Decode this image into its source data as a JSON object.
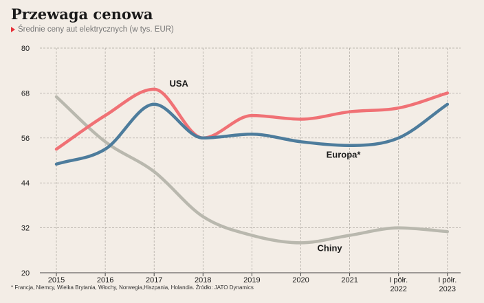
{
  "header": {
    "title": "Przewaga cenowa",
    "subtitle": "Średnie ceny aut elektrycznych (w tys. EUR)"
  },
  "footnote": "* Francja, Niemcy, Wielka Brytania, Włochy, Norwegia,Hiszpania, Holandia. Źródło: JATO Dynamics",
  "chart_data": {
    "type": "line",
    "title": "Przewaga cenowa",
    "subtitle": "Średnie ceny aut elektrycznych (w tys. EUR)",
    "xlabel": "",
    "ylabel": "",
    "categories": [
      [
        "2015"
      ],
      [
        "2016"
      ],
      [
        "2017"
      ],
      [
        "2018"
      ],
      [
        "2019"
      ],
      [
        "2020"
      ],
      [
        "2021"
      ],
      [
        "I półr.",
        "2022"
      ],
      [
        "I półr.",
        "2023"
      ]
    ],
    "yticks": [
      20,
      32,
      44,
      56,
      68,
      80
    ],
    "ylim": [
      20,
      80
    ],
    "grid": true,
    "series": [
      {
        "name": "USA",
        "color": "#f07175",
        "values": [
          53,
          62,
          69,
          56,
          62,
          61,
          63,
          64,
          68
        ]
      },
      {
        "name": "Europa*",
        "color": "#4d7c9c",
        "values": [
          49,
          53,
          65,
          56,
          57,
          55,
          54,
          56,
          65
        ]
      },
      {
        "name": "Chiny",
        "color": "#b9b8ae",
        "values": [
          67,
          55,
          47,
          35,
          30,
          28,
          30,
          32,
          31
        ]
      }
    ]
  }
}
